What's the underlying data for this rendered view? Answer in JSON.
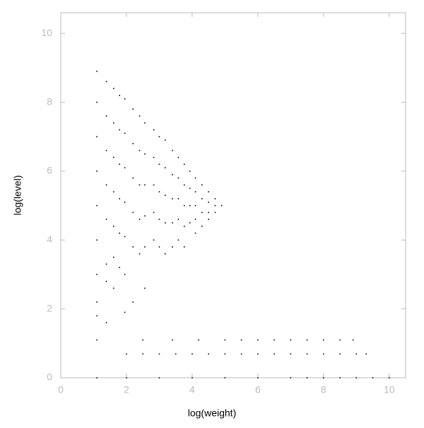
{
  "chart_data": {
    "type": "scatter",
    "xlabel": "log(weight)",
    "ylabel": "log(level)",
    "color": "#000000",
    "x": [
      1.1,
      1.1,
      1.1,
      1.1,
      1.1,
      1.1,
      1.1,
      1.1,
      1.1,
      1.1,
      1.39,
      1.39,
      1.39,
      1.39,
      1.39,
      1.39,
      1.39,
      1.39,
      1.61,
      1.61,
      1.61,
      1.61,
      1.61,
      1.61,
      1.61,
      1.79,
      1.79,
      1.79,
      1.79,
      1.79,
      1.79,
      1.95,
      1.95,
      1.95,
      1.95,
      1.95,
      1.95,
      1.95,
      2.2,
      2.2,
      2.2,
      2.2,
      2.2,
      2.2,
      2.4,
      2.4,
      2.4,
      2.4,
      2.4,
      2.56,
      2.56,
      2.56,
      2.56,
      2.56,
      2.56,
      2.83,
      2.83,
      2.83,
      2.83,
      2.83,
      3.0,
      3.0,
      3.0,
      3.0,
      3.0,
      3.18,
      3.18,
      3.18,
      3.18,
      3.18,
      3.4,
      3.4,
      3.4,
      3.4,
      3.4,
      3.58,
      3.58,
      3.58,
      3.58,
      3.58,
      3.76,
      3.76,
      3.76,
      3.76,
      3.76,
      3.93,
      3.93,
      3.93,
      3.93,
      4.1,
      4.1,
      4.1,
      4.1,
      4.1,
      4.3,
      4.3,
      4.3,
      4.3,
      4.5,
      4.5,
      4.5,
      4.5,
      4.7,
      4.7,
      4.7,
      4.9,
      1.1,
      2,
      3,
      4,
      5,
      6,
      7,
      7.5,
      8,
      8.5,
      9,
      9.5,
      10,
      2.0,
      2.5,
      3.0,
      3.5,
      4,
      4.5,
      5,
      5.5,
      6,
      6.5,
      7,
      7.5,
      8,
      8.5,
      9,
      9.3,
      2.5,
      3.4,
      4.2,
      5,
      5.5,
      6,
      6.5,
      7,
      7.5,
      8,
      8.5,
      8.9
    ],
    "values": [
      8.9,
      8.0,
      7.0,
      6.0,
      5.0,
      4.0,
      3.0,
      2.2,
      1.8,
      1.1,
      8.6,
      7.6,
      6.6,
      5.6,
      4.6,
      3.3,
      2.8,
      1.6,
      8.4,
      7.4,
      6.4,
      5.4,
      4.4,
      3.5,
      2.6,
      8.2,
      7.2,
      6.2,
      5.2,
      4.2,
      3.2,
      8.1,
      7.1,
      6.1,
      5.1,
      4.1,
      3.0,
      1.9,
      7.8,
      6.8,
      5.8,
      4.8,
      3.8,
      2.2,
      7.6,
      6.6,
      5.6,
      4.6,
      3.6,
      7.4,
      6.5,
      5.6,
      4.7,
      3.8,
      2.6,
      7.2,
      6.4,
      5.6,
      4.8,
      4.0,
      7.0,
      6.2,
      5.4,
      4.6,
      3.8,
      6.9,
      6.1,
      5.3,
      4.5,
      3.6,
      6.6,
      5.9,
      5.2,
      4.5,
      3.8,
      6.4,
      5.8,
      5.2,
      4.6,
      4.0,
      6.2,
      5.6,
      5.0,
      4.4,
      3.8,
      6.0,
      5.5,
      5.0,
      4.5,
      5.8,
      5.4,
      5.0,
      4.6,
      4.2,
      5.6,
      5.2,
      4.8,
      4.4,
      5.4,
      5.1,
      4.8,
      4.6,
      5.2,
      5.0,
      4.8,
      5.0,
      0,
      0,
      0,
      0,
      0,
      0,
      0,
      0,
      0,
      0,
      0,
      0,
      0,
      0.69,
      0.69,
      0.69,
      0.69,
      0.69,
      0.69,
      0.69,
      0.69,
      0.69,
      0.69,
      0.69,
      0.69,
      0.69,
      0.69,
      0.69,
      0.69,
      1.1,
      1.1,
      1.1,
      1.1,
      1.1,
      1.1,
      1.1,
      1.1,
      1.1,
      1.1,
      1.1,
      1.1
    ],
    "xlim": [
      0,
      10.5
    ],
    "ylim": [
      0,
      10.6
    ],
    "xticks": [
      0,
      2,
      4,
      6,
      8,
      10
    ],
    "yticks": [
      0,
      2,
      4,
      6,
      8,
      10
    ]
  }
}
